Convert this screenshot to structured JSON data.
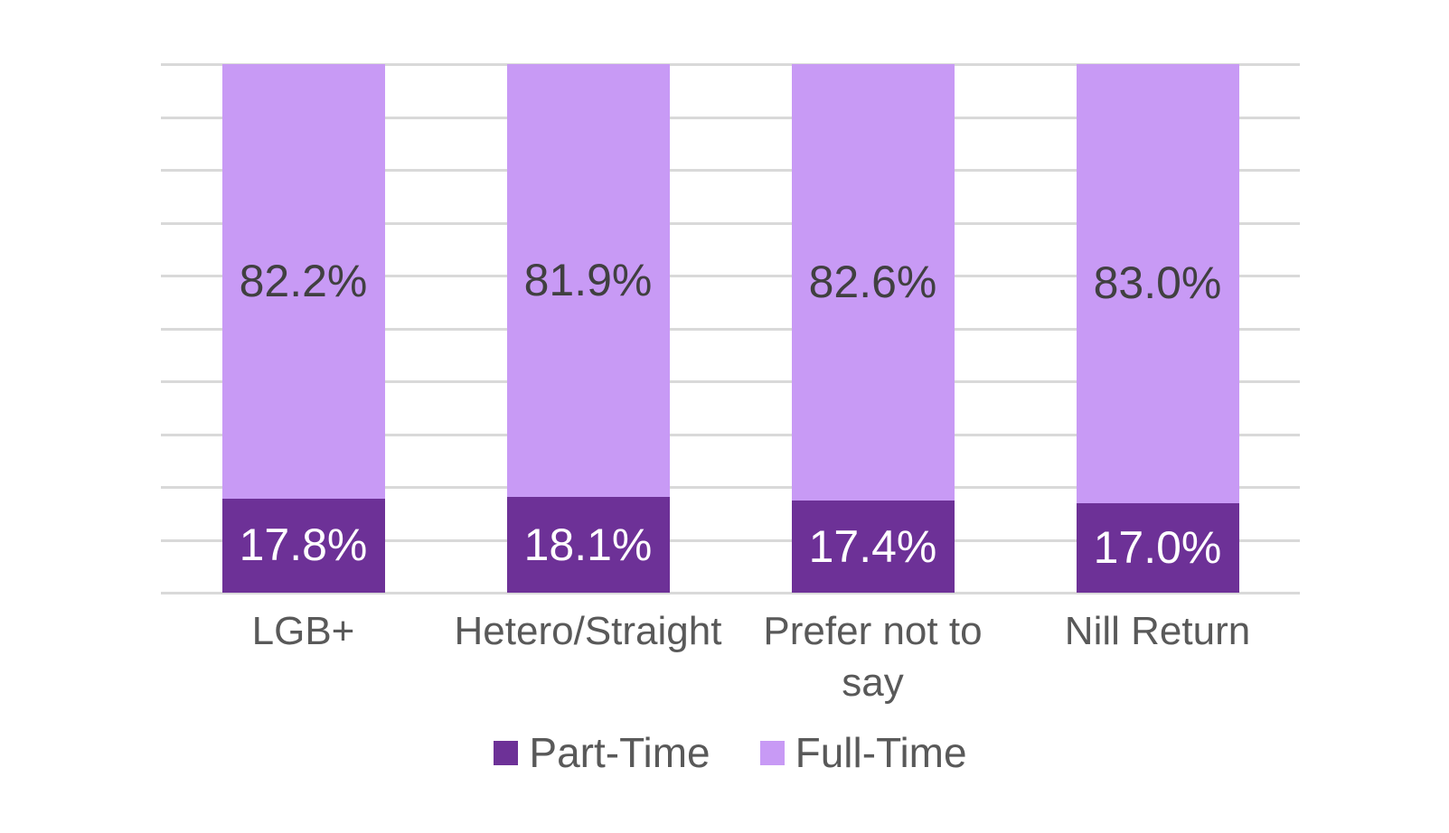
{
  "chart_data": {
    "type": "bar",
    "stacked": true,
    "title": "",
    "xlabel": "",
    "ylabel": "",
    "categories": [
      "LGB+",
      "Hetero/Straight",
      "Prefer not to say",
      "Nill Return"
    ],
    "series": [
      {
        "name": "Part-Time",
        "values": [
          17.8,
          18.1,
          17.4,
          17.0
        ],
        "labels": [
          "17.8%",
          "18.1%",
          "17.4%",
          "17.0%"
        ],
        "color": "#6D3197",
        "label_color": "#FFFFFF"
      },
      {
        "name": "Full-Time",
        "values": [
          82.2,
          81.9,
          82.6,
          83.0
        ],
        "labels": [
          "82.2%",
          "81.9%",
          "82.6%",
          "83.0%"
        ],
        "color": "#C89AF5",
        "label_color": "#404040"
      }
    ],
    "ylim": [
      0,
      100
    ],
    "gridline_step": 10,
    "grid_on": true,
    "grid_color": "#D9D9D9",
    "axis_label_color": "#595959",
    "legend_text_color": "#595959",
    "legend_position": "bottom",
    "y_tick_labels_visible": false
  }
}
